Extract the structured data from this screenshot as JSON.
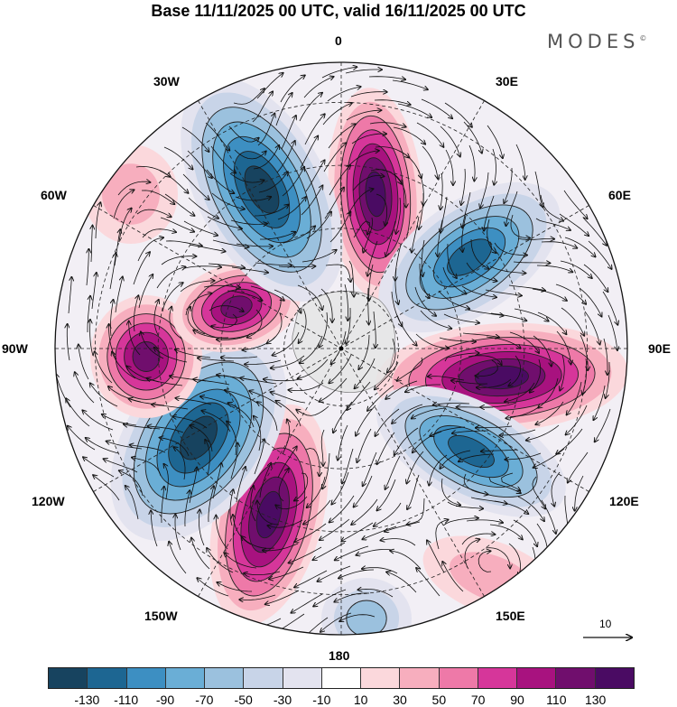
{
  "title": "Base 11/11/2025 00 UTC, valid 16/11/2025 00 UTC",
  "brand": {
    "name": "MODES",
    "mark": "©"
  },
  "map": {
    "projection": "polar stereographic (south pole)",
    "longitude_labels": {
      "top": "0",
      "top_left": "30W",
      "top_right": "30E",
      "upper_left": "60W",
      "upper_right": "60E",
      "left": "90W",
      "right": "90E",
      "lower_left": "120W",
      "lower_right": "120E",
      "bottom_left": "150W",
      "bottom_right": "150E",
      "bottom": "180"
    },
    "anomaly_centers": [
      {
        "sign": "positive",
        "longitude": "0",
        "strength": "strong"
      },
      {
        "sign": "negative",
        "longitude": "30E-60E",
        "strength": "strong"
      },
      {
        "sign": "positive",
        "longitude": "90E",
        "strength": "strong"
      },
      {
        "sign": "negative",
        "longitude": "120E",
        "strength": "strong"
      },
      {
        "sign": "positive",
        "longitude": "150E",
        "strength": "weak"
      },
      {
        "sign": "negative",
        "longitude": "180",
        "strength": "moderate"
      },
      {
        "sign": "positive",
        "longitude": "150W",
        "strength": "strong"
      },
      {
        "sign": "negative",
        "longitude": "120W",
        "strength": "strong"
      },
      {
        "sign": "positive",
        "longitude": "90W",
        "strength": "strong"
      },
      {
        "sign": "positive",
        "longitude": "60W",
        "strength": "weak"
      },
      {
        "sign": "negative",
        "longitude": "30W",
        "strength": "strong"
      }
    ],
    "vector_reference": {
      "label": "10"
    }
  },
  "colorbar": {
    "colors": [
      "#17435f",
      "#1d6692",
      "#3d8fc2",
      "#6aaed6",
      "#9bc1de",
      "#c8d4e8",
      "#e3e3ef",
      "#ffffff",
      "#fbd8dc",
      "#f7aebe",
      "#ee79a8",
      "#d6369a",
      "#a8127f",
      "#700e6d",
      "#4a0b63"
    ],
    "tick_labels": [
      "-130",
      "-110",
      "-90",
      "-70",
      "-50",
      "-30",
      "-10",
      "10",
      "30",
      "50",
      "70",
      "90",
      "110",
      "130"
    ]
  }
}
